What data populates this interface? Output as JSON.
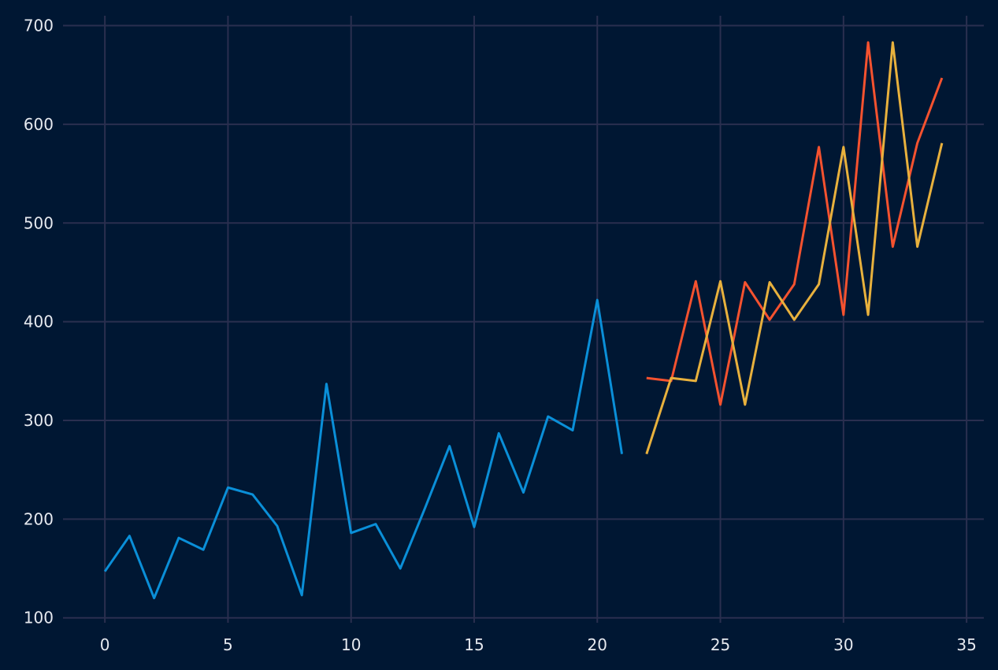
{
  "chart_data": {
    "type": "line",
    "title": "",
    "xlabel": "",
    "ylabel": "",
    "xlim": [
      -1.7,
      35.7
    ],
    "ylim": [
      95,
      710
    ],
    "x_ticks": [
      0,
      5,
      10,
      15,
      20,
      25,
      30,
      35
    ],
    "y_ticks": [
      100,
      200,
      300,
      400,
      500,
      600,
      700
    ],
    "grid": true,
    "background": "#001733",
    "series": [
      {
        "color": "#0a8fd8",
        "x": [
          0,
          1,
          2,
          3,
          4,
          5,
          6,
          7,
          8,
          9,
          10,
          11,
          12,
          13,
          14,
          15,
          16,
          17,
          18,
          19,
          20,
          21
        ],
        "y": [
          147,
          183,
          120,
          181,
          169,
          232,
          225,
          193,
          123,
          337,
          186,
          195,
          150,
          211,
          274,
          192,
          287,
          227,
          304,
          290,
          422,
          266
        ]
      },
      {
        "color": "#f5522f",
        "x": [
          22,
          23,
          24,
          25,
          26,
          27,
          28,
          29,
          30,
          31,
          32,
          33,
          34
        ],
        "y": [
          343,
          340,
          441,
          316,
          440,
          402,
          438,
          577,
          407,
          683,
          476,
          581,
          647
        ]
      },
      {
        "color": "#e8b13d",
        "x": [
          22,
          23,
          24,
          25,
          26,
          27,
          28,
          29,
          30,
          31,
          32,
          33,
          34
        ],
        "y": [
          266,
          343,
          340,
          441,
          316,
          440,
          402,
          438,
          577,
          407,
          683,
          476,
          581
        ]
      }
    ]
  }
}
